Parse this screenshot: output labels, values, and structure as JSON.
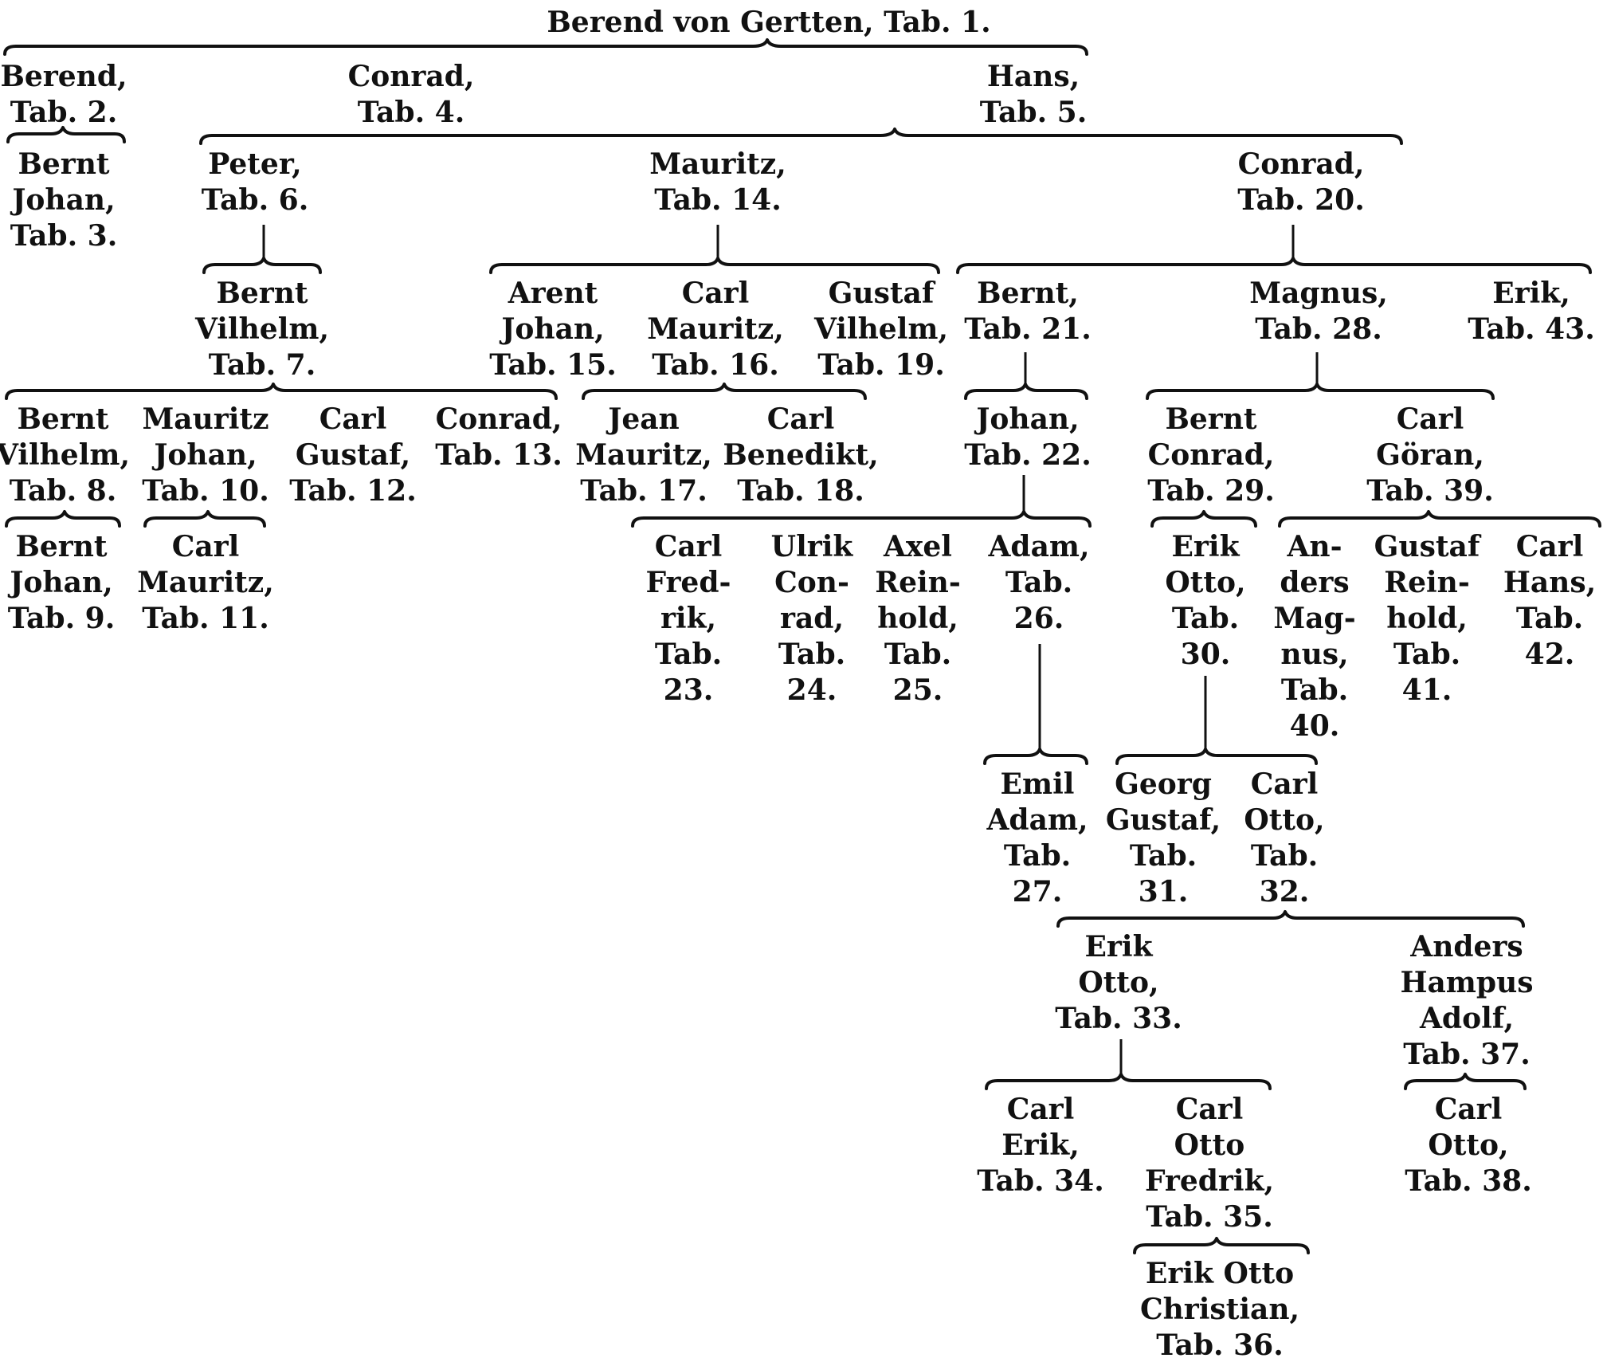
{
  "nodes": {
    "tab1": {
      "lines": [
        "Berend von Gertten, Tab. 1."
      ]
    },
    "tab2": {
      "lines": [
        "Berend,",
        "Tab. 2."
      ]
    },
    "tab3": {
      "lines": [
        "Bernt",
        "Johan,",
        "Tab. 3."
      ]
    },
    "tab4": {
      "lines": [
        "Conrad,",
        "Tab. 4."
      ]
    },
    "tab5": {
      "lines": [
        "Hans,",
        "Tab. 5."
      ]
    },
    "tab6": {
      "lines": [
        "Peter,",
        "Tab. 6."
      ]
    },
    "tab7": {
      "lines": [
        "Bernt",
        "Vilhelm,",
        "Tab. 7."
      ]
    },
    "tab8": {
      "lines": [
        "Bernt",
        "Vilhelm,",
        "Tab. 8."
      ]
    },
    "tab9": {
      "lines": [
        "Bernt",
        "Johan,",
        "Tab. 9."
      ]
    },
    "tab10": {
      "lines": [
        "Mauritz",
        "Johan,",
        "Tab. 10."
      ]
    },
    "tab11": {
      "lines": [
        "Carl",
        "Mauritz,",
        "Tab. 11."
      ]
    },
    "tab12": {
      "lines": [
        "Carl",
        "Gustaf,",
        "Tab. 12."
      ]
    },
    "tab13": {
      "lines": [
        "Conrad,",
        "Tab. 13."
      ]
    },
    "tab14": {
      "lines": [
        "Mauritz,",
        "Tab. 14."
      ]
    },
    "tab15": {
      "lines": [
        "Arent",
        "Johan,",
        "Tab. 15."
      ]
    },
    "tab16": {
      "lines": [
        "Carl",
        "Mauritz,",
        "Tab. 16."
      ]
    },
    "tab17": {
      "lines": [
        "Jean",
        "Mauritz,",
        "Tab. 17."
      ]
    },
    "tab18": {
      "lines": [
        "Carl",
        "Benedikt,",
        "Tab. 18."
      ]
    },
    "tab19": {
      "lines": [
        "Gustaf",
        "Vilhelm,",
        "Tab. 19."
      ]
    },
    "tab20": {
      "lines": [
        "Conrad,",
        "Tab. 20."
      ]
    },
    "tab21": {
      "lines": [
        "Bernt,",
        "Tab. 21."
      ]
    },
    "tab22": {
      "lines": [
        "Johan,",
        "Tab. 22."
      ]
    },
    "tab23": {
      "lines": [
        "Carl",
        "Fred-",
        "rik,",
        "Tab.",
        "23."
      ]
    },
    "tab24": {
      "lines": [
        "Ulrik",
        "Con-",
        "rad,",
        "Tab.",
        "24."
      ]
    },
    "tab25": {
      "lines": [
        "Axel",
        "Rein-",
        "hold,",
        "Tab.",
        "25."
      ]
    },
    "tab26": {
      "lines": [
        "Adam,",
        "Tab.",
        "26."
      ]
    },
    "tab27": {
      "lines": [
        "Emil",
        "Adam,",
        "Tab.",
        "27."
      ]
    },
    "tab28": {
      "lines": [
        "Magnus,",
        "Tab. 28."
      ]
    },
    "tab29": {
      "lines": [
        "Bernt",
        "Conrad,",
        "Tab. 29."
      ]
    },
    "tab30": {
      "lines": [
        "Erik",
        "Otto,",
        "Tab.",
        "30."
      ]
    },
    "tab31": {
      "lines": [
        "Georg",
        "Gustaf,",
        "Tab.",
        "31."
      ]
    },
    "tab32": {
      "lines": [
        "Carl",
        "Otto,",
        "Tab.",
        "32."
      ]
    },
    "tab33": {
      "lines": [
        "Erik",
        "Otto,",
        "Tab. 33."
      ]
    },
    "tab34": {
      "lines": [
        "Carl",
        "Erik,",
        "Tab. 34."
      ]
    },
    "tab35": {
      "lines": [
        "Carl",
        "Otto",
        "Fredrik,",
        "Tab. 35."
      ]
    },
    "tab36": {
      "lines": [
        "Erik Otto",
        "Christian,",
        "Tab. 36."
      ]
    },
    "tab37": {
      "lines": [
        "Anders",
        "Hampus",
        "Adolf,",
        "Tab. 37."
      ]
    },
    "tab38": {
      "lines": [
        "Carl",
        "Otto,",
        "Tab. 38."
      ]
    },
    "tab39": {
      "lines": [
        "Carl",
        "Göran,",
        "Tab. 39."
      ]
    },
    "tab40": {
      "lines": [
        "An-",
        "ders",
        "Mag-",
        "nus,",
        "Tab.",
        "40."
      ]
    },
    "tab41": {
      "lines": [
        "Gustaf",
        "Rein-",
        "hold,",
        "Tab.",
        "41."
      ]
    },
    "tab42": {
      "lines": [
        "Carl",
        "Hans,",
        "Tab.",
        "42."
      ]
    },
    "tab43": {
      "lines": [
        "Erik,",
        "Tab. 43."
      ]
    }
  }
}
